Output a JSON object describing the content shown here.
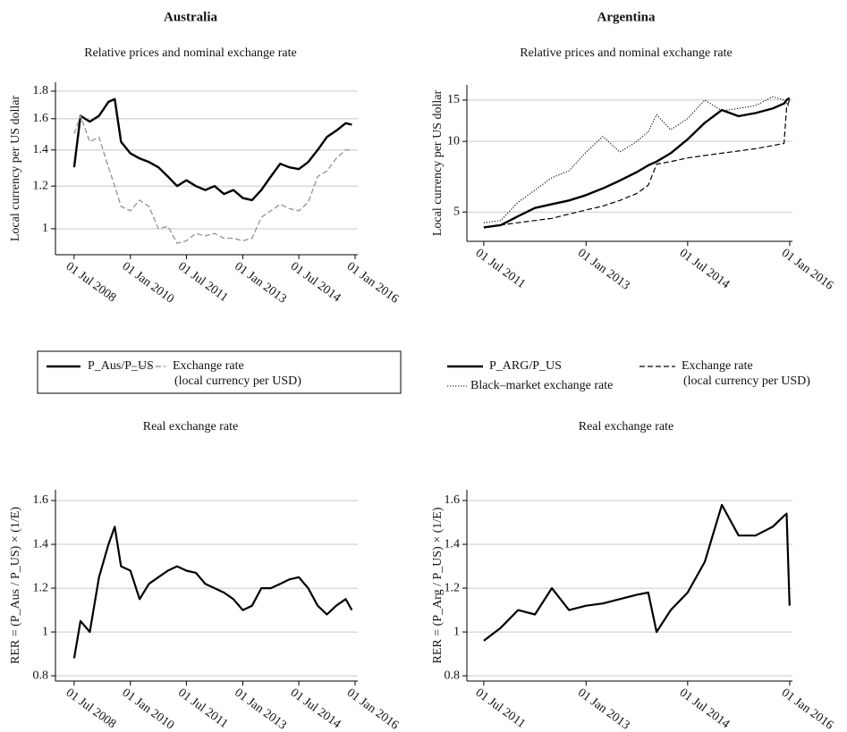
{
  "chart_data": [
    {
      "type": "line",
      "title": "Australia",
      "subtitle": "Relative prices and nominal exchange rate",
      "ylabel": "Local currency per US dollar",
      "log": true,
      "grid": true,
      "xlim": [
        "2008-01-01",
        "2016-01-01"
      ],
      "ylim": [
        0.895,
        1.87
      ],
      "yticks": [
        1,
        1.2,
        1.4,
        1.6,
        1.8
      ],
      "xticks": [
        {
          "value": "2008-07-01",
          "label": "01 Jul 2008"
        },
        {
          "value": "2010-01-01",
          "label": "01 Jan 2010"
        },
        {
          "value": "2011-07-01",
          "label": "01 Jul 2011"
        },
        {
          "value": "2013-01-01",
          "label": "01 Jan 2013"
        },
        {
          "value": "2014-07-01",
          "label": "01 Jul 2014"
        },
        {
          "value": "2016-01-01",
          "label": "01 Jan 2016"
        }
      ],
      "x": [
        "2008-07-01",
        "2008-09-01",
        "2008-12-01",
        "2009-03-01",
        "2009-06-01",
        "2009-08-01",
        "2009-10-01",
        "2010-01-01",
        "2010-04-01",
        "2010-07-01",
        "2010-10-01",
        "2011-01-01",
        "2011-04-01",
        "2011-07-01",
        "2011-10-01",
        "2012-01-01",
        "2012-04-01",
        "2012-07-01",
        "2012-10-01",
        "2013-01-01",
        "2013-04-01",
        "2013-07-01",
        "2013-10-01",
        "2014-01-01",
        "2014-04-01",
        "2014-07-01",
        "2014-10-01",
        "2015-01-01",
        "2015-04-01",
        "2015-07-01",
        "2015-10-01",
        "2015-12-01"
      ],
      "legend_box": true,
      "series": [
        {
          "name": [
            "P_Aus/P_US"
          ],
          "color": "#000000",
          "dash": "solid",
          "width": 2.4,
          "values": [
            1.3,
            1.62,
            1.58,
            1.62,
            1.72,
            1.74,
            1.45,
            1.38,
            1.35,
            1.33,
            1.3,
            1.25,
            1.2,
            1.23,
            1.2,
            1.18,
            1.2,
            1.16,
            1.18,
            1.14,
            1.13,
            1.18,
            1.25,
            1.32,
            1.3,
            1.29,
            1.33,
            1.4,
            1.48,
            1.52,
            1.57,
            1.56
          ]
        },
        {
          "name": [
            "Exchange rate",
            "(local currency per USD)"
          ],
          "color": "#999999",
          "dash": "dashed",
          "width": 1.4,
          "values": [
            1.5,
            1.62,
            1.45,
            1.48,
            1.3,
            1.2,
            1.1,
            1.08,
            1.13,
            1.1,
            1.0,
            1.01,
            0.94,
            0.95,
            0.98,
            0.97,
            0.98,
            0.96,
            0.96,
            0.95,
            0.96,
            1.05,
            1.08,
            1.11,
            1.09,
            1.08,
            1.12,
            1.25,
            1.28,
            1.35,
            1.4,
            1.4
          ]
        }
      ]
    },
    {
      "type": "line",
      "title": "Argentina",
      "subtitle": "Relative prices and nominal exchange rate",
      "ylabel": "Local currency per US dollar",
      "log": true,
      "grid": true,
      "xlim": [
        "2011-04-01",
        "2016-01-01"
      ],
      "ylim": [
        3.75,
        17.4
      ],
      "yticks": [
        5,
        10,
        15
      ],
      "xticks": [
        {
          "value": "2011-07-01",
          "label": "01 Jul 2011"
        },
        {
          "value": "2013-01-01",
          "label": "01 Jan 2013"
        },
        {
          "value": "2014-07-01",
          "label": "01 Jul 2014"
        },
        {
          "value": "2016-01-01",
          "label": "01 Jan 2016"
        }
      ],
      "x": [
        "2011-07-01",
        "2011-10-01",
        "2012-01-01",
        "2012-04-01",
        "2012-07-01",
        "2012-10-01",
        "2013-01-01",
        "2013-04-01",
        "2013-07-01",
        "2013-10-01",
        "2013-12-01",
        "2014-01-15",
        "2014-04-01",
        "2014-07-01",
        "2014-10-01",
        "2015-01-01",
        "2015-04-01",
        "2015-07-01",
        "2015-10-01",
        "2015-12-01",
        "2015-12-15",
        "2015-12-31"
      ],
      "legend_box": false,
      "series": [
        {
          "name": [
            "P_ARG/P_US"
          ],
          "color": "#000000",
          "dash": "solid",
          "width": 2.4,
          "values": [
            4.3,
            4.4,
            4.8,
            5.2,
            5.4,
            5.6,
            5.9,
            6.3,
            6.8,
            7.4,
            7.9,
            8.2,
            8.9,
            10.2,
            12.0,
            13.6,
            12.8,
            13.2,
            13.8,
            14.5,
            15.0,
            15.3
          ]
        },
        {
          "name": [
            "Exchange rate",
            "(local currency per USD)"
          ],
          "color": "#000000",
          "dash": "dashed",
          "width": 1.2,
          "values": [
            4.3,
            4.4,
            4.5,
            4.6,
            4.7,
            4.9,
            5.1,
            5.3,
            5.6,
            6.0,
            6.5,
            8.0,
            8.2,
            8.5,
            8.7,
            8.9,
            9.1,
            9.3,
            9.6,
            9.8,
            14.0,
            15.0
          ]
        },
        {
          "name": [
            "Black–market exchange rate"
          ],
          "color": "#000000",
          "dash": "dotted",
          "width": 1.1,
          "values": [
            4.5,
            4.6,
            5.5,
            6.2,
            7.0,
            7.5,
            9.0,
            10.5,
            9.0,
            10.0,
            11.0,
            13.0,
            11.2,
            12.5,
            15.0,
            13.5,
            13.8,
            14.2,
            15.5,
            15.0,
            14.5,
            14.0
          ]
        }
      ]
    },
    {
      "type": "line",
      "subtitle": "Real exchange rate",
      "ylabel": "RER = (P_Aus / P_US) × (1/E)",
      "log": false,
      "grid": true,
      "color": "#000000",
      "width": 2.2,
      "xlim": [
        "2008-01-01",
        "2016-01-01"
      ],
      "ylim": [
        0.776,
        1.649
      ],
      "yticks": [
        0.8,
        1,
        1.2,
        1.4,
        1.6
      ],
      "xticks": [
        {
          "value": "2008-07-01",
          "label": "01 Jul 2008"
        },
        {
          "value": "2010-01-01",
          "label": "01 Jan 2010"
        },
        {
          "value": "2011-07-01",
          "label": "01 Jul 2011"
        },
        {
          "value": "2013-01-01",
          "label": "01 Jan 2013"
        },
        {
          "value": "2014-07-01",
          "label": "01 Jul 2014"
        },
        {
          "value": "2016-01-01",
          "label": "01 Jan 2016"
        }
      ],
      "x": [
        "2008-07-01",
        "2008-09-01",
        "2008-12-01",
        "2009-03-01",
        "2009-06-01",
        "2009-08-01",
        "2009-10-01",
        "2010-01-01",
        "2010-04-01",
        "2010-07-01",
        "2010-10-01",
        "2011-01-01",
        "2011-04-01",
        "2011-07-01",
        "2011-10-01",
        "2012-01-01",
        "2012-04-01",
        "2012-07-01",
        "2012-10-01",
        "2013-01-01",
        "2013-04-01",
        "2013-07-01",
        "2013-10-01",
        "2014-01-01",
        "2014-04-01",
        "2014-07-01",
        "2014-10-01",
        "2015-01-01",
        "2015-04-01",
        "2015-07-01",
        "2015-10-01",
        "2015-12-01"
      ],
      "values": [
        0.88,
        1.05,
        1.0,
        1.25,
        1.4,
        1.48,
        1.3,
        1.28,
        1.15,
        1.22,
        1.25,
        1.28,
        1.3,
        1.28,
        1.27,
        1.22,
        1.2,
        1.18,
        1.15,
        1.1,
        1.12,
        1.2,
        1.2,
        1.22,
        1.24,
        1.25,
        1.2,
        1.12,
        1.08,
        1.12,
        1.15,
        1.1
      ]
    },
    {
      "type": "line",
      "subtitle": "Real exchange rate",
      "ylabel": "RER = (P_Arg / P_US) × (1/E)",
      "log": false,
      "grid": true,
      "color": "#000000",
      "width": 2.2,
      "xlim": [
        "2011-04-01",
        "2016-01-01"
      ],
      "ylim": [
        0.776,
        1.649
      ],
      "yticks": [
        0.8,
        1,
        1.2,
        1.4,
        1.6
      ],
      "xticks": [
        {
          "value": "2011-07-01",
          "label": "01 Jul 2011"
        },
        {
          "value": "2013-01-01",
          "label": "01 Jan 2013"
        },
        {
          "value": "2014-07-01",
          "label": "01 Jul 2014"
        },
        {
          "value": "2016-01-01",
          "label": "01 Jan 2016"
        }
      ],
      "x": [
        "2011-07-01",
        "2011-10-01",
        "2012-01-01",
        "2012-04-01",
        "2012-07-01",
        "2012-10-01",
        "2013-01-01",
        "2013-04-01",
        "2013-07-01",
        "2013-10-01",
        "2013-12-01",
        "2014-01-15",
        "2014-04-01",
        "2014-07-01",
        "2014-10-01",
        "2015-01-01",
        "2015-04-01",
        "2015-07-01",
        "2015-10-01",
        "2015-12-01",
        "2015-12-15",
        "2015-12-31"
      ],
      "values": [
        0.96,
        1.02,
        1.1,
        1.08,
        1.2,
        1.1,
        1.12,
        1.13,
        1.15,
        1.17,
        1.18,
        1.0,
        1.1,
        1.18,
        1.32,
        1.58,
        1.44,
        1.44,
        1.48,
        1.53,
        1.54,
        1.12
      ]
    }
  ]
}
